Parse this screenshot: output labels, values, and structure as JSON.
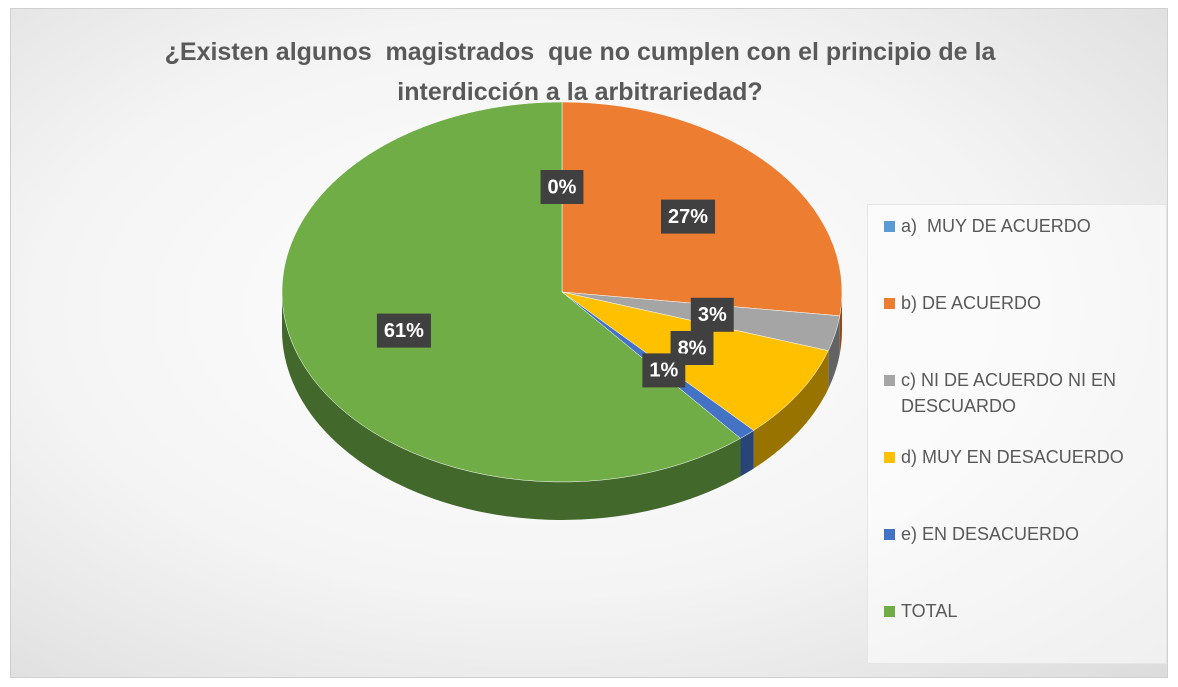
{
  "chart_data": {
    "type": "pie",
    "title": "¿Existen algunos  magistrados  que no cumplen con el principio de la interdicción a la arbitrariedad?",
    "categories": [
      "a)  MUY DE ACUERDO",
      "b) DE ACUERDO",
      "c) NI DE ACUERDO NI EN DESCUARDO",
      "d) MUY EN DESACUERDO",
      "e) EN DESACUERDO",
      "TOTAL"
    ],
    "values": [
      0,
      27,
      3,
      8,
      1,
      61
    ],
    "value_labels": [
      "0%",
      "27%",
      "3%",
      "8%",
      "1%",
      "61%"
    ],
    "colors": [
      "#5b9bd5",
      "#ed7d31",
      "#a5a5a5",
      "#ffc000",
      "#4472c4",
      "#70ad47"
    ],
    "legend": "right"
  }
}
